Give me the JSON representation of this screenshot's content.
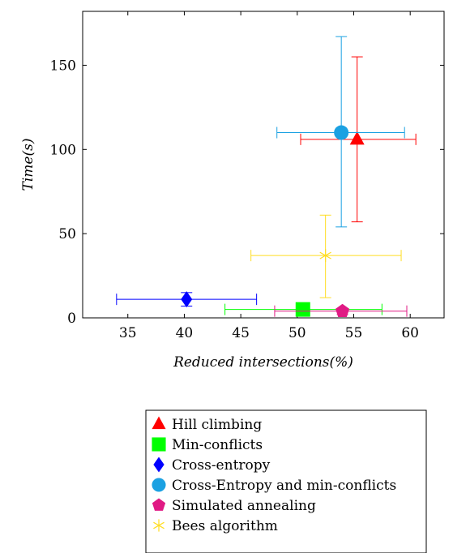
{
  "chart_data": {
    "type": "scatter",
    "title": "",
    "xlabel": "Reduced intersections(%)",
    "ylabel": "Time(s)",
    "xlim": [
      31,
      63
    ],
    "ylim": [
      0,
      182
    ],
    "xticks": [
      35,
      40,
      45,
      50,
      55,
      60
    ],
    "yticks": [
      0,
      50,
      100,
      150
    ],
    "grid": false,
    "legend_position": "below",
    "series": [
      {
        "name": "Hill climbing",
        "marker": "triangle",
        "color": "#ff0000",
        "x": 55.3,
        "y": 106,
        "x_err": [
          50.3,
          60.5
        ],
        "y_err": [
          57,
          155
        ]
      },
      {
        "name": "Min-conflicts",
        "marker": "square",
        "color": "#00ff00",
        "x": 50.5,
        "y": 5,
        "x_err": [
          43.6,
          57.5
        ],
        "y_err": [
          5,
          5
        ]
      },
      {
        "name": "Cross-entropy",
        "marker": "diamond",
        "color": "#0000ff",
        "x": 40.2,
        "y": 11,
        "x_err": [
          34,
          46.4
        ],
        "y_err": [
          7,
          15
        ]
      },
      {
        "name": "Cross-Entropy and min-conflicts",
        "marker": "circle",
        "color": "#1ba1e2",
        "x": 53.9,
        "y": 110,
        "x_err": [
          48.2,
          59.5
        ],
        "y_err": [
          54,
          167
        ]
      },
      {
        "name": "Simulated annealing",
        "marker": "pentagon",
        "color": "#e01a84",
        "x": 54,
        "y": 4,
        "x_err": [
          48,
          59.7
        ],
        "y_err": [
          2,
          5
        ]
      },
      {
        "name": "Bees algorithm",
        "marker": "asterisk",
        "color": "#ffdd22",
        "x": 52.5,
        "y": 37,
        "x_err": [
          45.9,
          59.2
        ],
        "y_err": [
          12,
          61
        ]
      }
    ]
  }
}
